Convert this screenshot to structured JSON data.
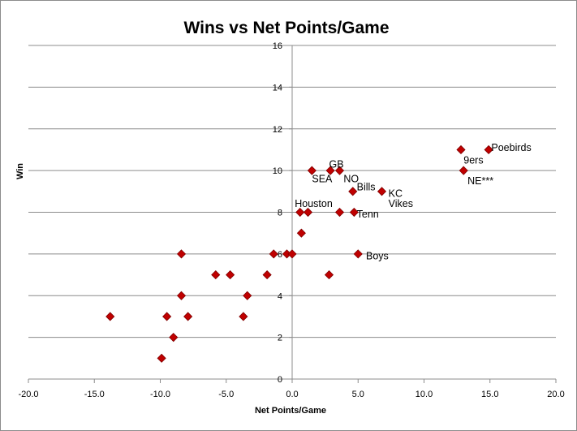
{
  "chart_data": {
    "type": "scatter",
    "title": "Wins vs Net Points/Game",
    "xlabel": "Net Points/Game",
    "ylabel": "Win",
    "xlim": [
      -20,
      20
    ],
    "ylim": [
      0,
      16
    ],
    "x_tick_labels": [
      "-20.0",
      "-15.0",
      "-10.0",
      "-5.0",
      "0.0",
      "5.0",
      "10.0",
      "15.0",
      "20.0"
    ],
    "y_tick_labels": [
      "0",
      "2",
      "4",
      "6",
      "8",
      "10",
      "12",
      "14",
      "16"
    ],
    "grid": "horizontal",
    "marker_color": "#C00000",
    "marker_border": "#7F0000",
    "points": [
      {
        "x": -13.8,
        "y": 3
      },
      {
        "x": -9.9,
        "y": 1
      },
      {
        "x": -9.5,
        "y": 3
      },
      {
        "x": -9.0,
        "y": 2
      },
      {
        "x": -8.4,
        "y": 6
      },
      {
        "x": -8.4,
        "y": 4
      },
      {
        "x": -7.9,
        "y": 3
      },
      {
        "x": -5.8,
        "y": 5
      },
      {
        "x": -4.7,
        "y": 5
      },
      {
        "x": -3.7,
        "y": 3
      },
      {
        "x": -3.4,
        "y": 4
      },
      {
        "x": -1.9,
        "y": 5
      },
      {
        "x": -1.4,
        "y": 6
      },
      {
        "x": -0.4,
        "y": 6
      },
      {
        "x": 0.0,
        "y": 6
      },
      {
        "x": 0.6,
        "y": 8
      },
      {
        "x": 0.7,
        "y": 7
      },
      {
        "x": 1.2,
        "y": 8
      },
      {
        "x": 1.5,
        "y": 10
      },
      {
        "x": 2.8,
        "y": 5
      },
      {
        "x": 2.9,
        "y": 10
      },
      {
        "x": 3.6,
        "y": 8
      },
      {
        "x": 3.6,
        "y": 10
      },
      {
        "x": 4.6,
        "y": 9
      },
      {
        "x": 4.7,
        "y": 8
      },
      {
        "x": 5.0,
        "y": 6
      },
      {
        "x": 6.8,
        "y": 9
      },
      {
        "x": 12.8,
        "y": 11
      },
      {
        "x": 13.0,
        "y": 10
      },
      {
        "x": 14.9,
        "y": 11
      }
    ],
    "annotations": [
      {
        "text": "SEA",
        "x": 1.5,
        "y": 9.6
      },
      {
        "text": "GB",
        "x": 2.8,
        "y": 10.3
      },
      {
        "text": "NO",
        "x": 3.9,
        "y": 9.6
      },
      {
        "text": "Bills",
        "x": 4.9,
        "y": 9.2
      },
      {
        "text": "KC",
        "x": 7.3,
        "y": 8.9
      },
      {
        "text": "Vikes",
        "x": 7.3,
        "y": 8.4
      },
      {
        "text": "Houston",
        "x": 0.2,
        "y": 8.4
      },
      {
        "text": "Tenn",
        "x": 4.9,
        "y": 7.9
      },
      {
        "text": "Boys",
        "x": 5.6,
        "y": 5.9
      },
      {
        "text": "9ers",
        "x": 13.0,
        "y": 10.5
      },
      {
        "text": "Poebirds",
        "x": 15.1,
        "y": 11.1
      },
      {
        "text": "NE***",
        "x": 13.3,
        "y": 9.5
      }
    ]
  }
}
